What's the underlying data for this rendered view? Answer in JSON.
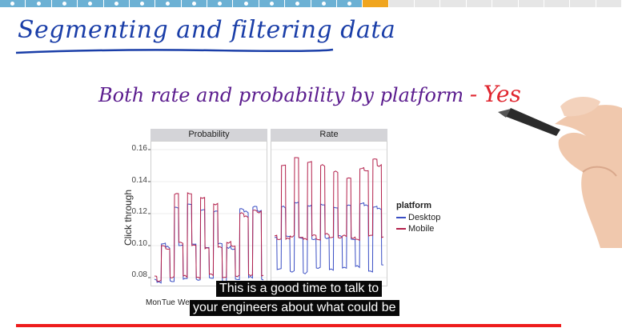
{
  "lesson": {
    "title": "Segmenting and filtering data",
    "subtitle": "Both rate and probability by platform",
    "subtitle_dash": "-",
    "subtitle_answer": "Yes"
  },
  "progress": {
    "segments": 24,
    "current_index": 14,
    "completed": 14
  },
  "chart_data": {
    "type": "line",
    "facets": [
      "Probability",
      "Rate"
    ],
    "ylabel": "Click through",
    "xlabel": "",
    "y_ticks": [
      "0.16",
      "0.14",
      "0.12",
      "0.10",
      "0.08"
    ],
    "ylim": [
      0.075,
      0.165
    ],
    "x_tick_labels": [
      "Mon",
      "Tue",
      "We"
    ],
    "legend": {
      "title": "platform",
      "items": [
        {
          "name": "Desktop",
          "color": "#3a4ec4"
        },
        {
          "name": "Mobile",
          "color": "#b3204b"
        }
      ]
    },
    "series": [
      {
        "name": "Desktop",
        "facet": "Probability",
        "color": "#3a4ec4",
        "values": [
          0.079,
          0.077,
          0.101,
          0.099,
          0.078,
          0.124,
          0.1,
          0.079,
          0.126,
          0.101,
          0.079,
          0.122,
          0.099,
          0.08,
          0.121,
          0.101,
          0.078,
          0.099,
          0.098,
          0.079,
          0.123,
          0.121,
          0.08,
          0.124,
          0.122,
          0.079
        ]
      },
      {
        "name": "Mobile",
        "facet": "Probability",
        "color": "#b3204b",
        "values": [
          0.081,
          0.078,
          0.1,
          0.098,
          0.08,
          0.132,
          0.102,
          0.081,
          0.133,
          0.1,
          0.08,
          0.13,
          0.098,
          0.082,
          0.126,
          0.099,
          0.08,
          0.102,
          0.1,
          0.081,
          0.12,
          0.118,
          0.082,
          0.122,
          0.121,
          0.081
        ]
      },
      {
        "name": "Desktop",
        "facet": "Rate",
        "color": "#3a4ec4",
        "values": [
          0.105,
          0.085,
          0.124,
          0.106,
          0.084,
          0.127,
          0.105,
          0.083,
          0.125,
          0.104,
          0.086,
          0.126,
          0.105,
          0.085,
          0.124,
          0.106,
          0.086,
          0.125,
          0.104,
          0.087,
          0.126,
          0.125,
          0.084,
          0.124,
          0.123,
          0.088
        ]
      },
      {
        "name": "Mobile",
        "facet": "Rate",
        "color": "#b3204b",
        "values": [
          0.106,
          0.104,
          0.15,
          0.104,
          0.106,
          0.155,
          0.105,
          0.104,
          0.152,
          0.106,
          0.104,
          0.15,
          0.107,
          0.105,
          0.146,
          0.105,
          0.106,
          0.142,
          0.105,
          0.104,
          0.148,
          0.147,
          0.106,
          0.154,
          0.15,
          0.105
        ]
      }
    ]
  },
  "captions": {
    "line1": "This is a good time to talk to",
    "line2": "your engineers about what could be"
  },
  "player": {
    "played_fraction": 0.9
  }
}
